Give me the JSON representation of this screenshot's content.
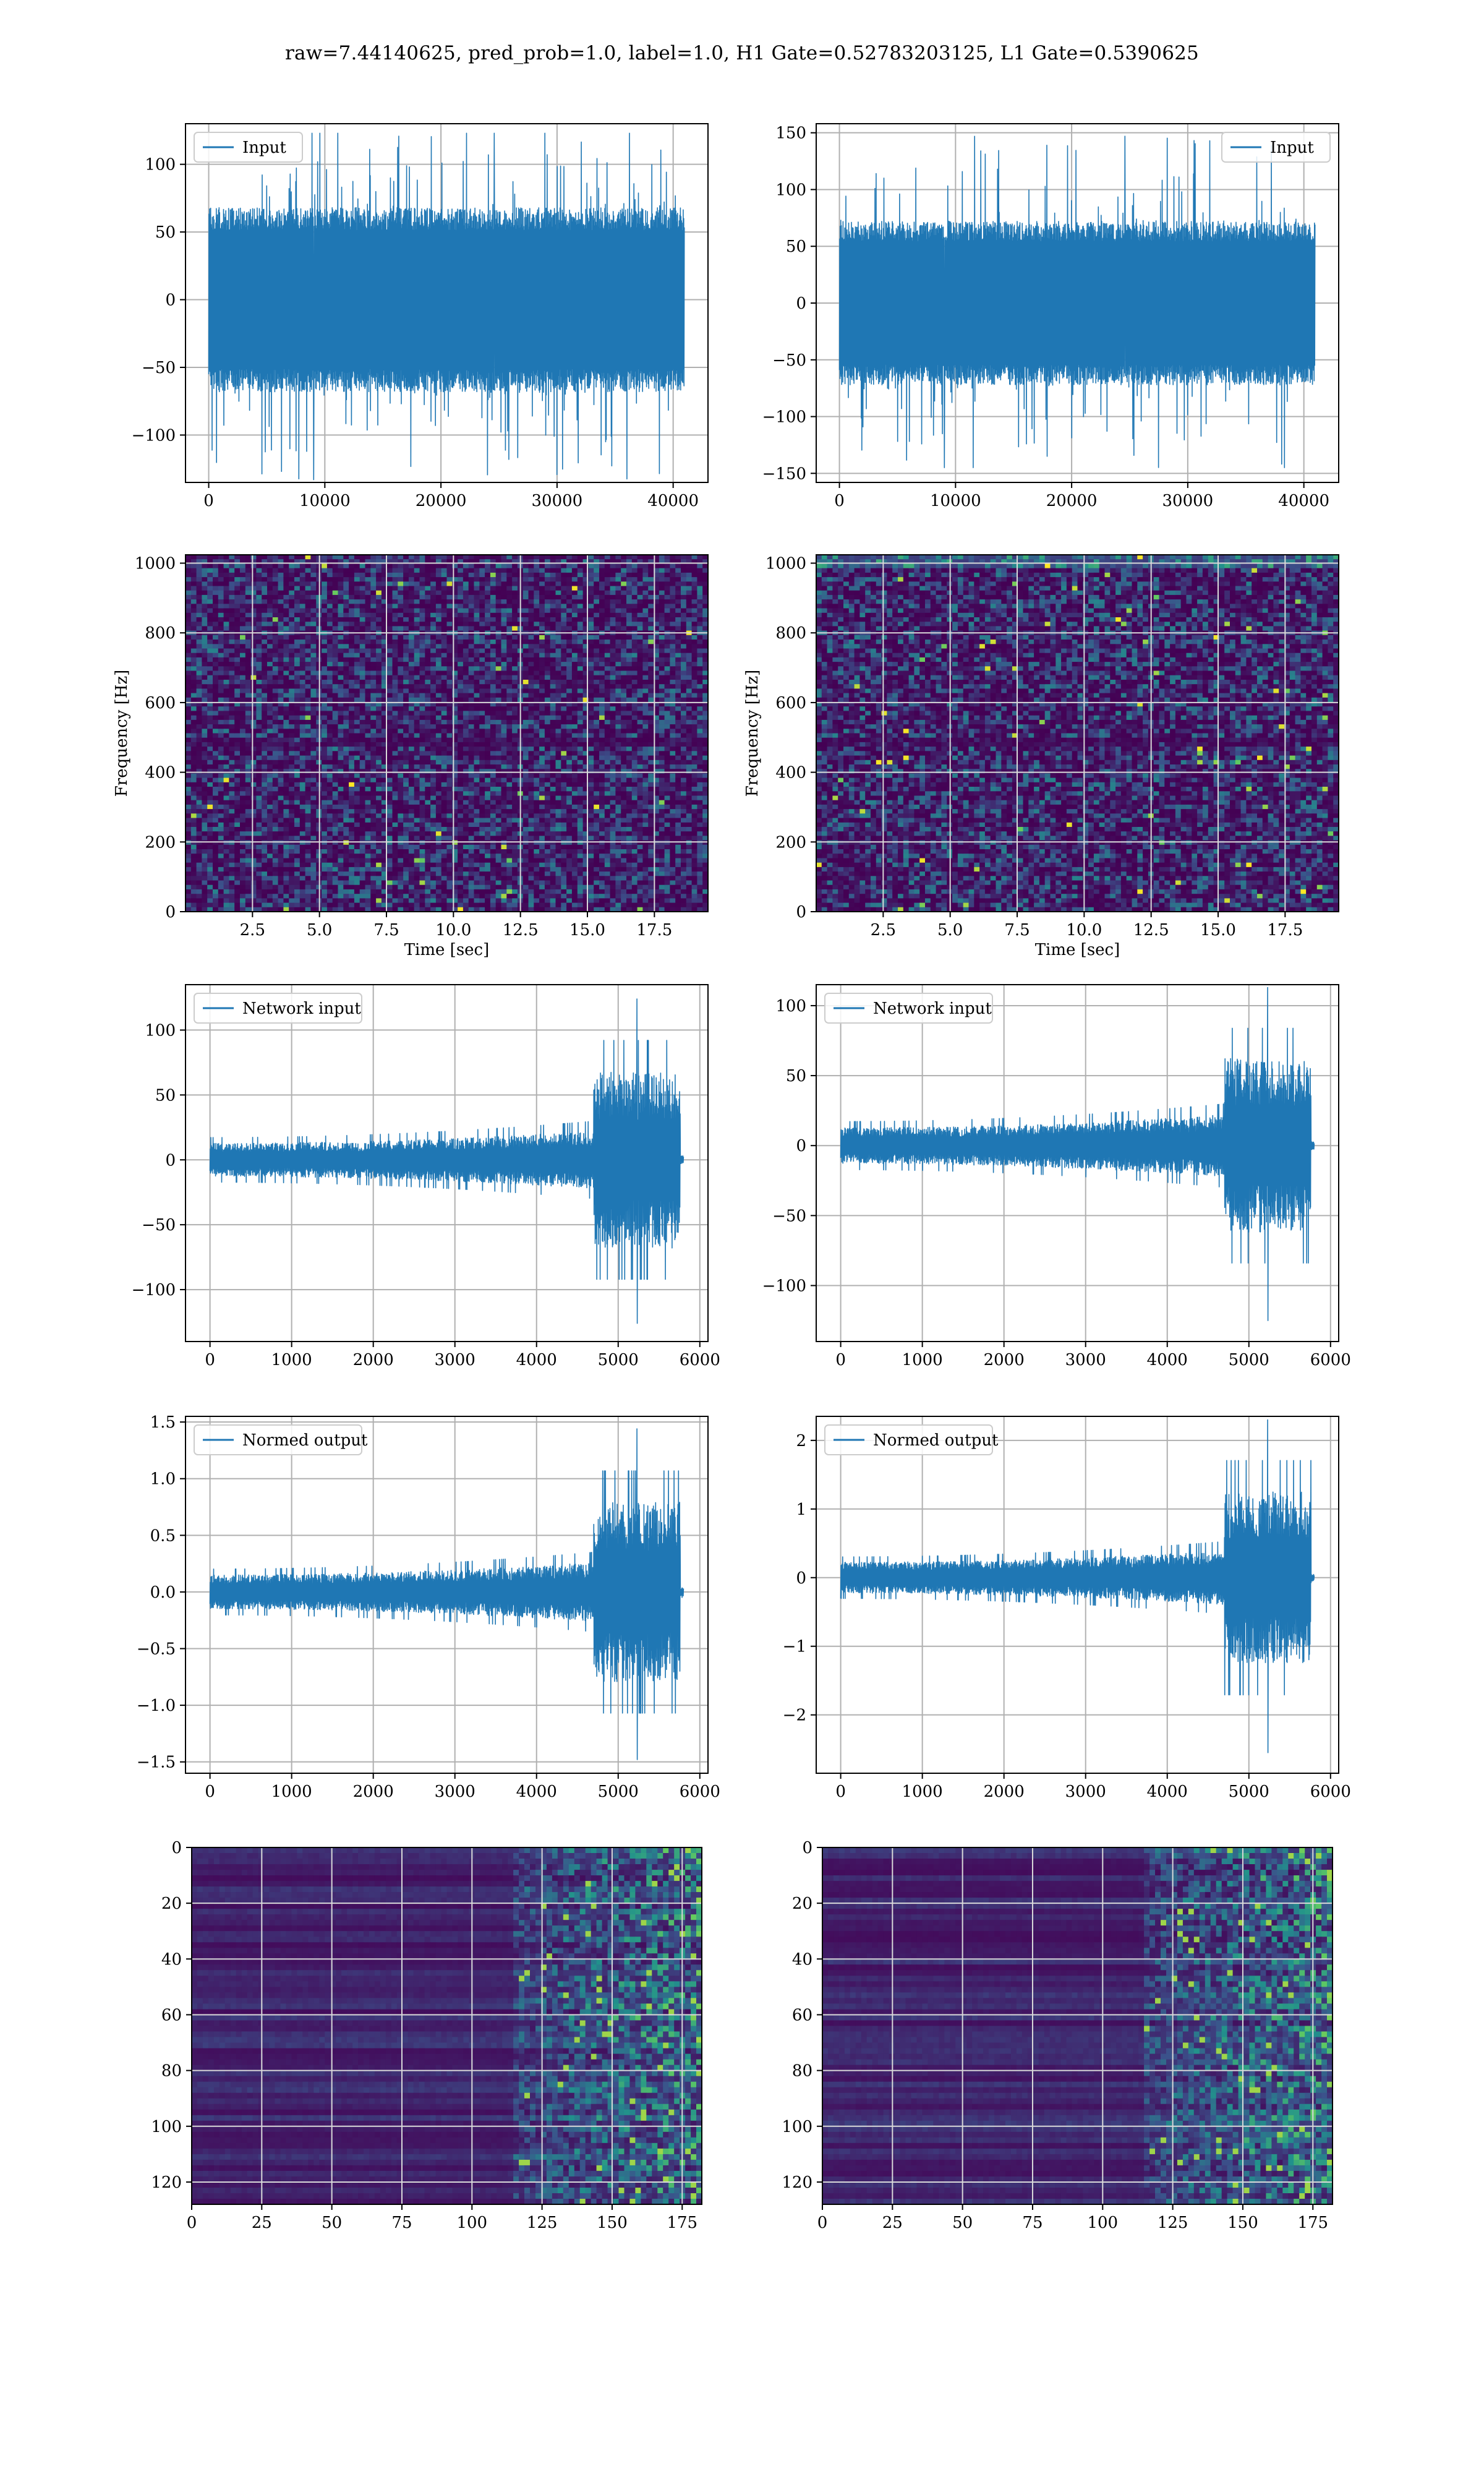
{
  "figure": {
    "title": "raw=7.44140625, pred_prob=1.0, label=1.0, H1 Gate=0.52783203125, L1 Gate=0.5390625"
  },
  "colors": {
    "line": "#1f77b4",
    "grid": "#b0b0b0",
    "viridis_low": "#440154",
    "viridis_high": "#fde725"
  },
  "chart_data": [
    {
      "type": "line",
      "panel": "input-H1",
      "series": [
        {
          "name": "Input",
          "envelope": {
            "max": 123,
            "min": -133,
            "core": 68
          }
        }
      ],
      "xlim": [
        -2000,
        43000
      ],
      "ylim": [
        -135,
        130
      ],
      "xticks": [
        0,
        10000,
        20000,
        30000,
        40000
      ],
      "xtick_labels": [
        "0",
        "10000",
        "20000",
        "30000",
        "40000"
      ],
      "yticks": [
        -100,
        -50,
        0,
        50,
        100
      ],
      "ytick_labels": [
        "−100",
        "−50",
        "0",
        "50",
        "100"
      ],
      "xlabel": "",
      "ylabel": "",
      "legend": "upper-left",
      "grid": true
    },
    {
      "type": "line",
      "panel": "input-L1",
      "series": [
        {
          "name": "Input",
          "envelope": {
            "max": 147,
            "min": -145,
            "core": 72
          }
        }
      ],
      "xlim": [
        -2000,
        43000
      ],
      "ylim": [
        -158,
        158
      ],
      "xticks": [
        0,
        10000,
        20000,
        30000,
        40000
      ],
      "xtick_labels": [
        "0",
        "10000",
        "20000",
        "30000",
        "40000"
      ],
      "yticks": [
        -150,
        -100,
        -50,
        0,
        50,
        100,
        150
      ],
      "ytick_labels": [
        "−150",
        "−100",
        "−50",
        "0",
        "50",
        "100",
        "150"
      ],
      "xlabel": "",
      "ylabel": "",
      "legend": "upper-right",
      "grid": true
    },
    {
      "type": "heatmap",
      "panel": "spectrogram-H1",
      "xlim": [
        0,
        19.5
      ],
      "ylim": [
        0,
        1024
      ],
      "xticks": [
        2.5,
        5.0,
        7.5,
        10.0,
        12.5,
        15.0,
        17.5
      ],
      "xtick_labels": [
        "2.5",
        "5.0",
        "7.5",
        "10.0",
        "12.5",
        "15.0",
        "17.5"
      ],
      "yticks": [
        0,
        200,
        400,
        600,
        800,
        1000
      ],
      "ytick_labels": [
        "0",
        "200",
        "400",
        "600",
        "800",
        "1000"
      ],
      "xlabel": "Time [sec]",
      "ylabel": "Frequency [Hz]",
      "grid": true,
      "colormap": "viridis"
    },
    {
      "type": "heatmap",
      "panel": "spectrogram-L1",
      "xlim": [
        0,
        19.5
      ],
      "ylim": [
        0,
        1024
      ],
      "xticks": [
        2.5,
        5.0,
        7.5,
        10.0,
        12.5,
        15.0,
        17.5
      ],
      "xtick_labels": [
        "2.5",
        "5.0",
        "7.5",
        "10.0",
        "12.5",
        "15.0",
        "17.5"
      ],
      "yticks": [
        0,
        200,
        400,
        600,
        800,
        1000
      ],
      "ytick_labels": [
        "0",
        "200",
        "400",
        "600",
        "800",
        "1000"
      ],
      "xlabel": "Time [sec]",
      "ylabel": "Frequency [Hz]",
      "grid": true,
      "colormap": "viridis"
    },
    {
      "type": "line",
      "panel": "network-input-H1",
      "series": [
        {
          "name": "Network input",
          "envelope": {
            "x_end": 5760,
            "tail_end": 5800,
            "quiet_amp": 17,
            "loud_start": 4700,
            "peak": 124,
            "trough": -126
          }
        }
      ],
      "xlim": [
        -300,
        6100
      ],
      "ylim": [
        -140,
        135
      ],
      "xticks": [
        0,
        1000,
        2000,
        3000,
        4000,
        5000,
        6000
      ],
      "xtick_labels": [
        "0",
        "1000",
        "2000",
        "3000",
        "4000",
        "5000",
        "6000"
      ],
      "yticks": [
        -100,
        -50,
        0,
        50,
        100
      ],
      "ytick_labels": [
        "−100",
        "−50",
        "0",
        "50",
        "100"
      ],
      "xlabel": "",
      "ylabel": "",
      "legend": "upper-left",
      "grid": true
    },
    {
      "type": "line",
      "panel": "network-input-L1",
      "series": [
        {
          "name": "Network input",
          "envelope": {
            "x_end": 5760,
            "tail_end": 5800,
            "quiet_amp": 17,
            "loud_start": 4700,
            "peak": 113,
            "trough": -125
          }
        }
      ],
      "xlim": [
        -300,
        6100
      ],
      "ylim": [
        -140,
        115
      ],
      "xticks": [
        0,
        1000,
        2000,
        3000,
        4000,
        5000,
        6000
      ],
      "xtick_labels": [
        "0",
        "1000",
        "2000",
        "3000",
        "4000",
        "5000",
        "6000"
      ],
      "yticks": [
        -100,
        -50,
        0,
        50,
        100
      ],
      "ytick_labels": [
        "−100",
        "−50",
        "0",
        "50",
        "100"
      ],
      "xlabel": "",
      "ylabel": "",
      "legend": "upper-left",
      "grid": true
    },
    {
      "type": "line",
      "panel": "normed-output-H1",
      "series": [
        {
          "name": "Normed output",
          "envelope": {
            "x_end": 5760,
            "tail_end": 5800,
            "quiet_amp": 0.2,
            "loud_start": 4700,
            "peak": 1.44,
            "trough": -1.48
          }
        }
      ],
      "xlim": [
        -300,
        6100
      ],
      "ylim": [
        -1.6,
        1.55
      ],
      "xticks": [
        0,
        1000,
        2000,
        3000,
        4000,
        5000,
        6000
      ],
      "xtick_labels": [
        "0",
        "1000",
        "2000",
        "3000",
        "4000",
        "5000",
        "6000"
      ],
      "yticks": [
        -1.5,
        -1.0,
        -0.5,
        0.0,
        0.5,
        1.0,
        1.5
      ],
      "ytick_labels": [
        "−1.5",
        "−1.0",
        "−0.5",
        "0.0",
        "0.5",
        "1.0",
        "1.5"
      ],
      "xlabel": "",
      "ylabel": "",
      "legend": "upper-left",
      "grid": true
    },
    {
      "type": "line",
      "panel": "normed-output-L1",
      "series": [
        {
          "name": "Normed output",
          "envelope": {
            "x_end": 5760,
            "tail_end": 5800,
            "quiet_amp": 0.3,
            "loud_start": 4700,
            "peak": 2.3,
            "trough": -2.55
          }
        }
      ],
      "xlim": [
        -300,
        6100
      ],
      "ylim": [
        -2.85,
        2.35
      ],
      "xticks": [
        0,
        1000,
        2000,
        3000,
        4000,
        5000,
        6000
      ],
      "xtick_labels": [
        "0",
        "1000",
        "2000",
        "3000",
        "4000",
        "5000",
        "6000"
      ],
      "yticks": [
        -2,
        -1,
        0,
        1,
        2
      ],
      "ytick_labels": [
        "−2",
        "−1",
        "0",
        "1",
        "2"
      ],
      "xlabel": "",
      "ylabel": "",
      "legend": "upper-left",
      "grid": true
    },
    {
      "type": "heatmap",
      "panel": "feature-map-H1",
      "xlim": [
        0,
        182
      ],
      "ylim": [
        128,
        0
      ],
      "xticks": [
        0,
        25,
        50,
        75,
        100,
        125,
        150,
        175
      ],
      "xtick_labels": [
        "0",
        "25",
        "50",
        "75",
        "100",
        "125",
        "150",
        "175"
      ],
      "yticks": [
        0,
        20,
        40,
        60,
        80,
        100,
        120
      ],
      "ytick_labels": [
        "0",
        "20",
        "40",
        "60",
        "80",
        "100",
        "120"
      ],
      "xlabel": "",
      "ylabel": "",
      "grid": true,
      "colormap": "viridis",
      "active_from_x": 115
    },
    {
      "type": "heatmap",
      "panel": "feature-map-L1",
      "xlim": [
        0,
        182
      ],
      "ylim": [
        128,
        0
      ],
      "xticks": [
        0,
        25,
        50,
        75,
        100,
        125,
        150,
        175
      ],
      "xtick_labels": [
        "0",
        "25",
        "50",
        "75",
        "100",
        "125",
        "150",
        "175"
      ],
      "yticks": [
        0,
        20,
        40,
        60,
        80,
        100,
        120
      ],
      "ytick_labels": [
        "0",
        "20",
        "40",
        "60",
        "80",
        "100",
        "120"
      ],
      "xlabel": "",
      "ylabel": "",
      "grid": true,
      "colormap": "viridis",
      "active_from_x": 115
    }
  ]
}
